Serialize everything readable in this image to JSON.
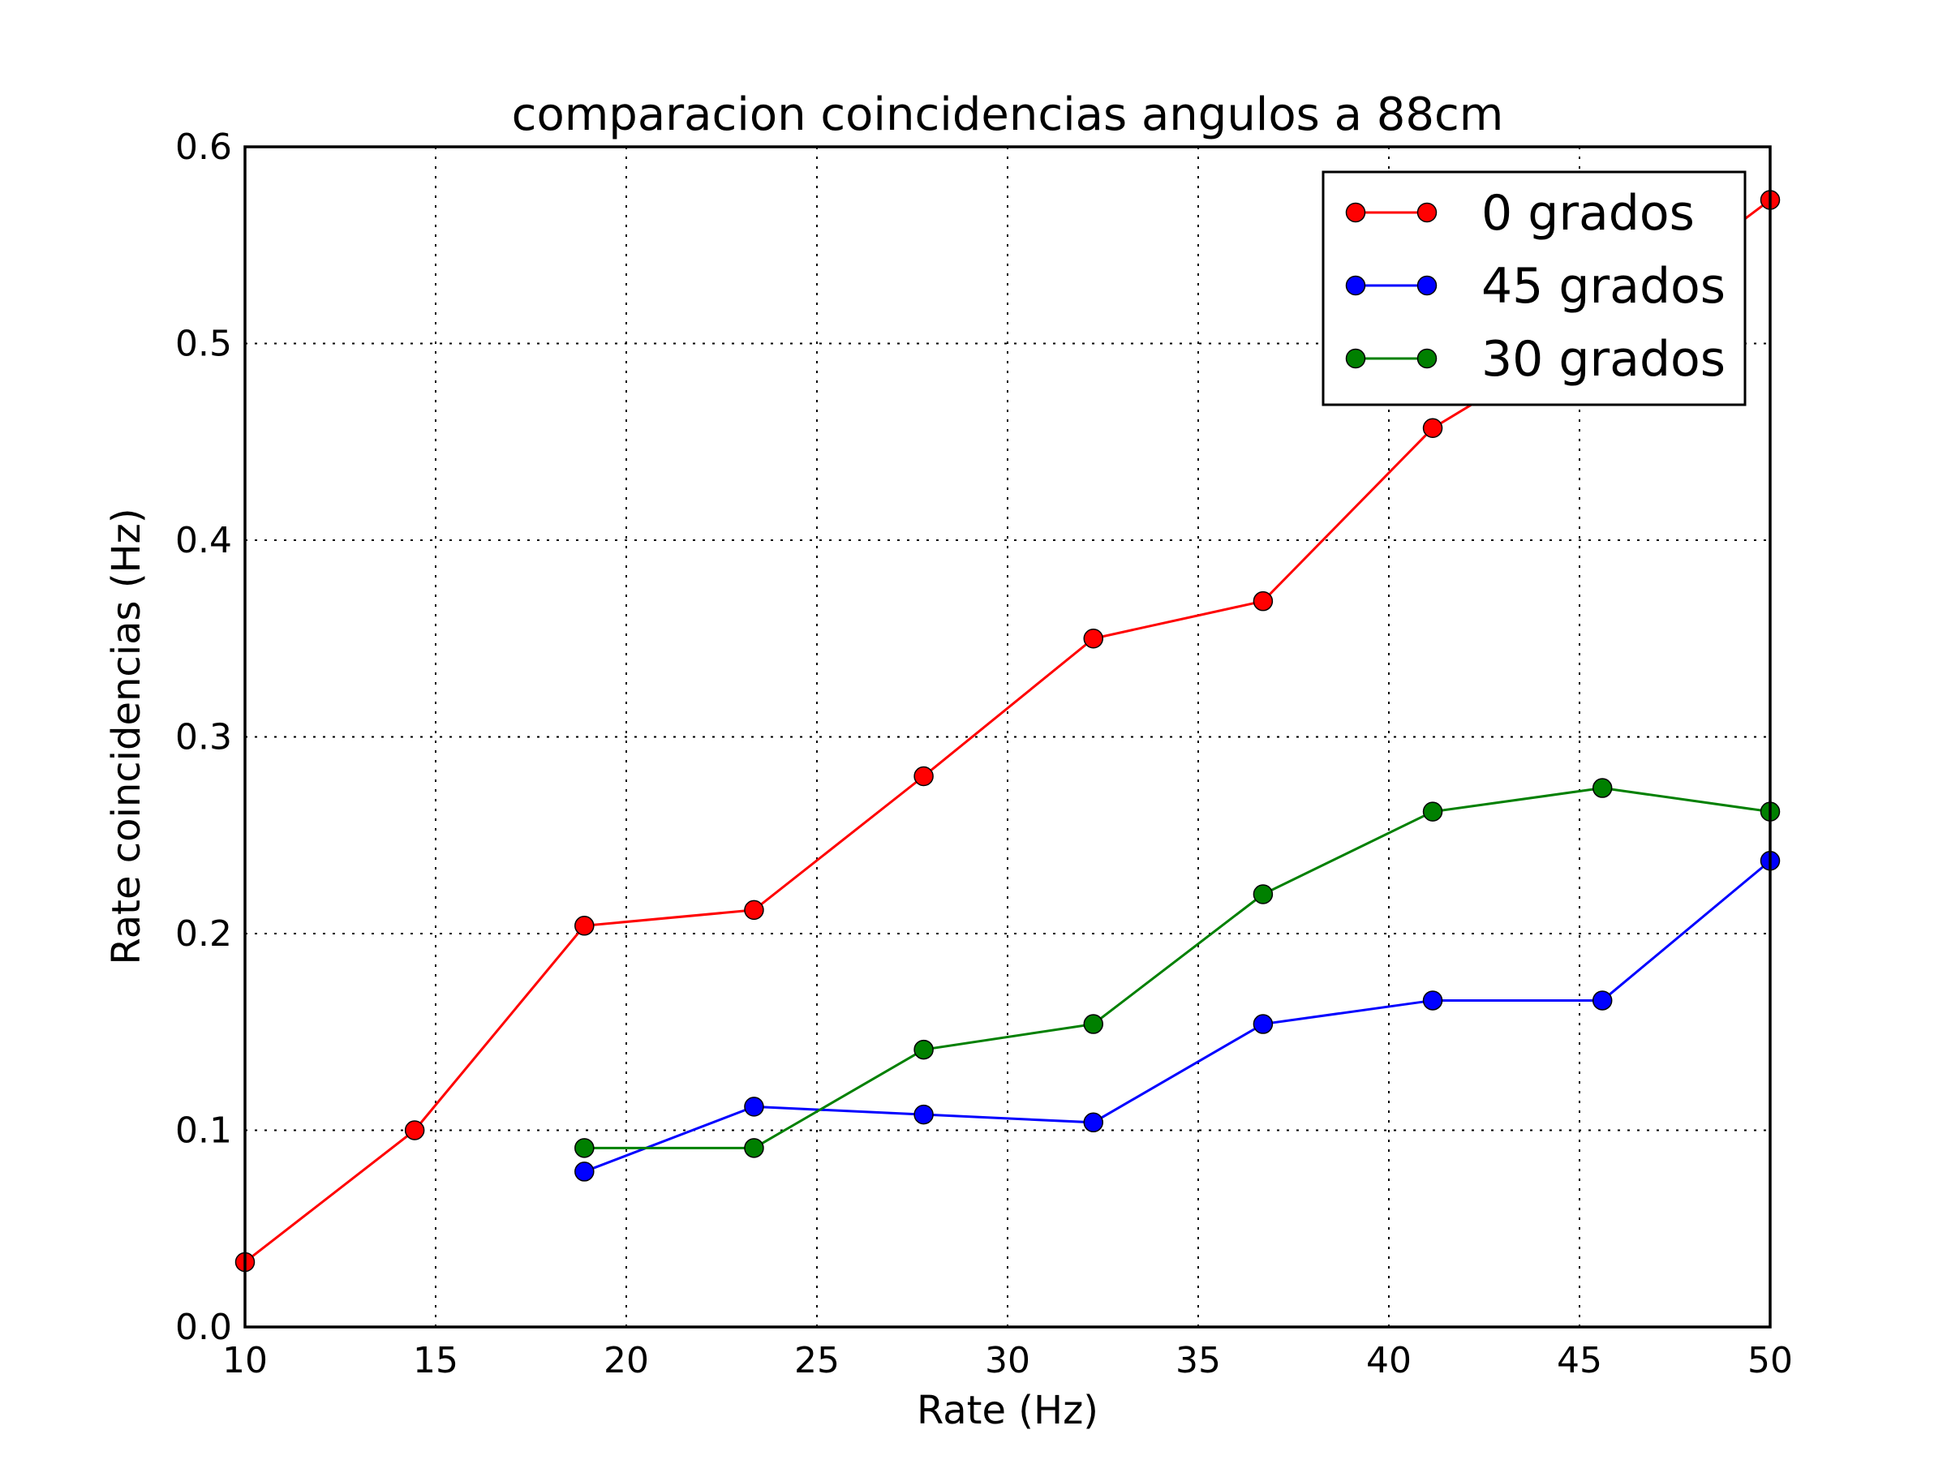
{
  "chart_data": {
    "type": "line",
    "title": "comparacion coincidencias angulos a 88cm",
    "xlabel": "Rate (Hz)",
    "ylabel": "Rate coincidencias (Hz)",
    "xlim": [
      10,
      50
    ],
    "ylim": [
      0.0,
      0.6
    ],
    "xticks": [
      "10",
      "15",
      "20",
      "25",
      "30",
      "35",
      "40",
      "45",
      "50"
    ],
    "yticks": [
      "0.0",
      "0.1",
      "0.2",
      "0.3",
      "0.4",
      "0.5",
      "0.6"
    ],
    "grid": true,
    "legend_position": "top-right",
    "series": [
      {
        "name": "0 grados",
        "color": "#ff0000",
        "x": [
          10.0,
          14.45,
          18.9,
          23.35,
          27.8,
          32.25,
          36.7,
          41.15,
          45.6,
          50.0
        ],
        "y": [
          0.033,
          0.1,
          0.204,
          0.212,
          0.28,
          0.35,
          0.369,
          0.457,
          0.509,
          0.573
        ]
      },
      {
        "name": "45 grados",
        "color": "#0000ff",
        "x": [
          18.9,
          23.35,
          27.8,
          32.25,
          36.7,
          41.15,
          45.6,
          50.0
        ],
        "y": [
          0.079,
          0.112,
          0.108,
          0.104,
          0.154,
          0.166,
          0.166,
          0.237
        ]
      },
      {
        "name": "30 grados",
        "color": "#008000",
        "x": [
          18.9,
          23.35,
          27.8,
          32.25,
          36.7,
          41.15,
          45.6,
          50.0
        ],
        "y": [
          0.091,
          0.091,
          0.141,
          0.154,
          0.22,
          0.262,
          0.274,
          0.262
        ]
      }
    ]
  }
}
